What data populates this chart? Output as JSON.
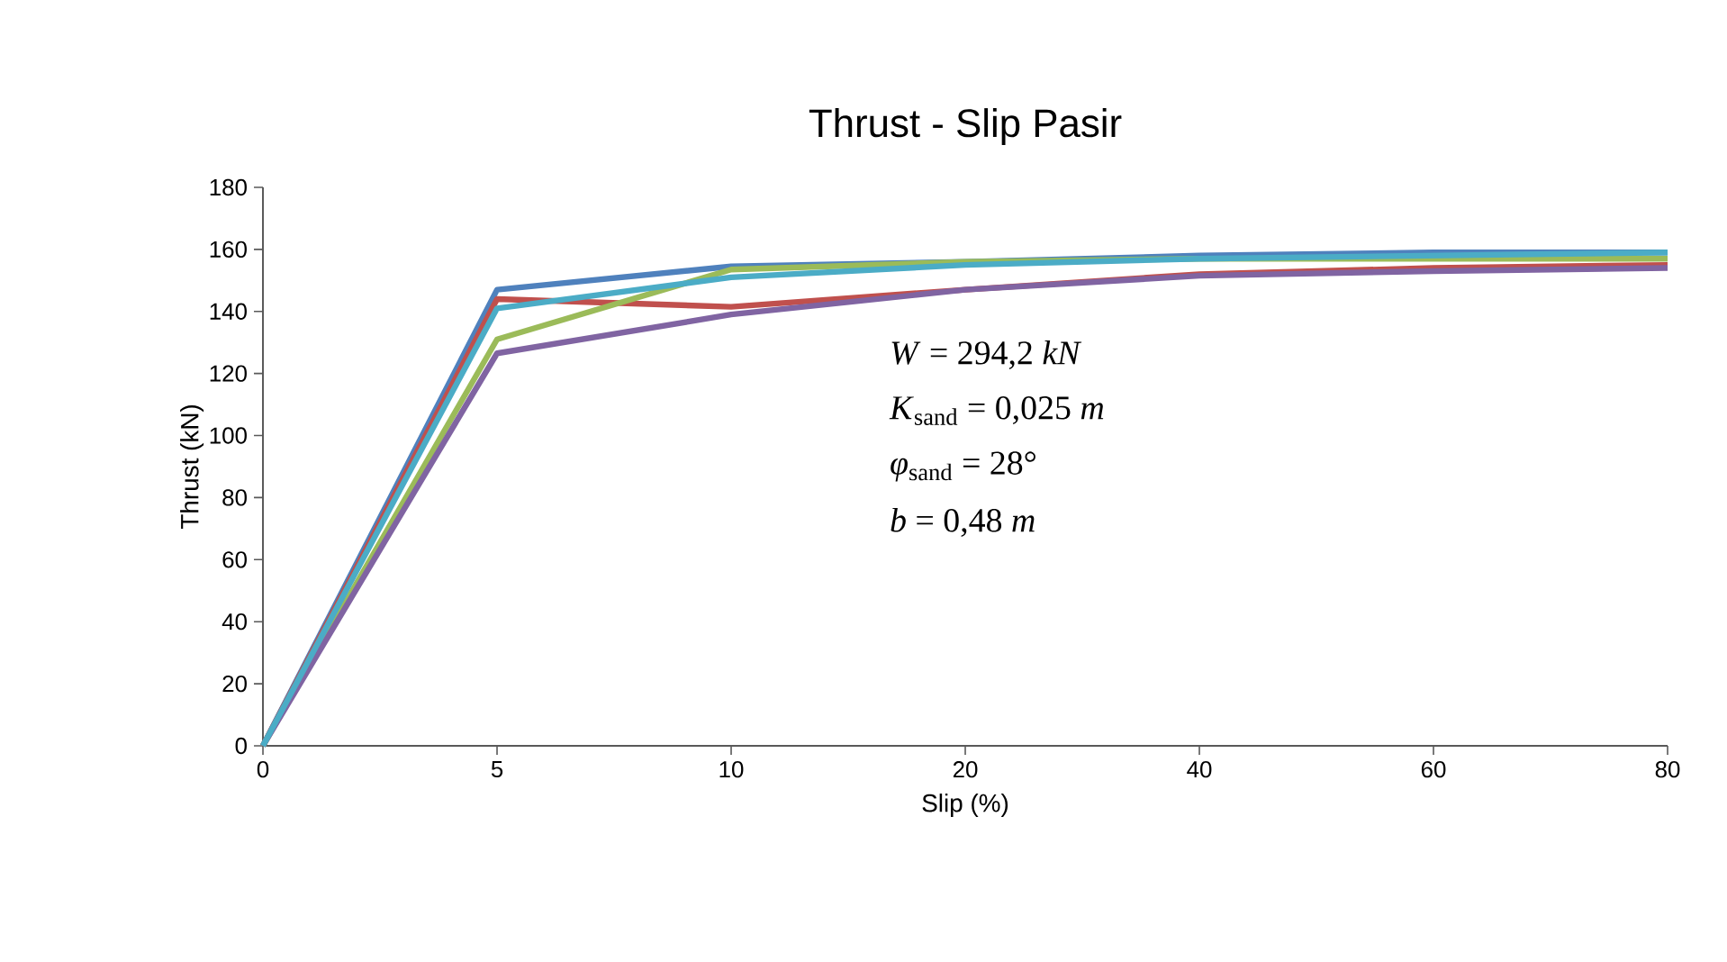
{
  "chart_data": {
    "type": "line",
    "title": "Thrust - Slip Pasir",
    "xlabel": "Slip (%)",
    "ylabel": "Thrust (kN)",
    "categories": [
      "0",
      "5",
      "10",
      "20",
      "40",
      "60",
      "80"
    ],
    "series": [
      {
        "color": "#4f81bd",
        "values": [
          0,
          147,
          154.5,
          156,
          158,
          159,
          159
        ]
      },
      {
        "color": "#c0504d",
        "values": [
          0,
          144,
          141.5,
          147,
          152,
          154,
          155
        ]
      },
      {
        "color": "#9bbb59",
        "values": [
          0,
          131,
          153.5,
          156,
          157,
          157,
          157
        ]
      },
      {
        "color": "#8064a2",
        "values": [
          0,
          126.5,
          139,
          147,
          151.5,
          153,
          154
        ]
      },
      {
        "color": "#4bacc6",
        "values": [
          0,
          141,
          151,
          155,
          157,
          158,
          159
        ]
      }
    ],
    "ylim": [
      0,
      180
    ],
    "yticks": [
      0,
      20,
      40,
      60,
      80,
      100,
      120,
      140,
      160,
      180
    ],
    "grid": false,
    "marker": "none",
    "line_style": "solid",
    "annotations": [
      "*W* =  294,2 *kN*",
      "*K*$_{sand}$ = 0,025 *m*",
      "*φ*$_{sand}$ = 28°",
      "*b* =  0,48 *m*"
    ]
  }
}
